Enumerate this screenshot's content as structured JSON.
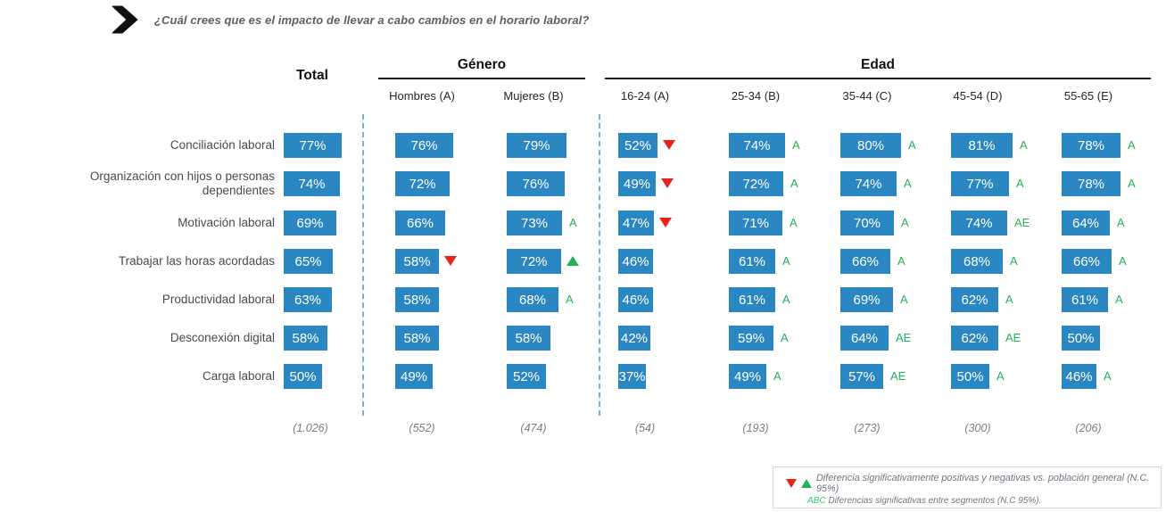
{
  "question": {
    "text": "¿Cuál crees que es el impacto de llevar a cabo cambios en el horario laboral?"
  },
  "chart_data": {
    "type": "table",
    "title": "¿Cuál crees que es el impacto de llevar a cabo cambios en el horario laboral?",
    "unit": "%",
    "column_group_headers": {
      "total": "Total",
      "genero": "Género",
      "edad": "Edad"
    },
    "columns": [
      "Total",
      "Hombres (A)",
      "Mujeres (B)",
      "16-24 (A)",
      "25-34 (B)",
      "35-44 (C)",
      "45-54 (D)",
      "55-65 (E)"
    ],
    "column_groups": {
      "Género": [
        "Hombres (A)",
        "Mujeres (B)"
      ],
      "Edad": [
        "16-24 (A)",
        "25-34 (B)",
        "35-44 (C)",
        "45-54 (D)",
        "55-65 (E)"
      ]
    },
    "row_categories": [
      "Conciliación laboral",
      "Organización con hijos o personas dependientes",
      "Motivación laboral",
      "Trabajar las horas acordadas",
      "Productividad laboral",
      "Desconexión digital",
      "Carga laboral"
    ],
    "values_pct": [
      [
        77,
        76,
        79,
        52,
        74,
        80,
        81,
        78
      ],
      [
        74,
        72,
        76,
        49,
        72,
        74,
        77,
        78
      ],
      [
        69,
        66,
        73,
        47,
        71,
        70,
        74,
        64
      ],
      [
        65,
        58,
        72,
        46,
        61,
        66,
        68,
        66
      ],
      [
        63,
        58,
        68,
        46,
        61,
        69,
        62,
        61
      ],
      [
        58,
        58,
        58,
        42,
        59,
        64,
        62,
        50
      ],
      [
        50,
        49,
        52,
        37,
        49,
        57,
        50,
        46
      ]
    ],
    "significance": [
      [
        "",
        "",
        "",
        "down",
        "A",
        "A",
        "A",
        "A"
      ],
      [
        "",
        "",
        "",
        "down",
        "A",
        "A",
        "A",
        "A"
      ],
      [
        "",
        "",
        "A",
        "down",
        "A",
        "A",
        "AE",
        "A"
      ],
      [
        "",
        "down",
        "up",
        "",
        "A",
        "A",
        "A",
        "A"
      ],
      [
        "",
        "",
        "A",
        "",
        "A",
        "A",
        "A",
        "A"
      ],
      [
        "",
        "",
        "",
        "",
        "A",
        "AE",
        "AE",
        ""
      ],
      [
        "",
        "",
        "",
        "",
        "A",
        "AE",
        "A",
        "A"
      ]
    ],
    "bases": [
      "(1.026)",
      "(552)",
      "(474)",
      "(54)",
      "(193)",
      "(273)",
      "(300)",
      "(206)"
    ]
  },
  "legend": {
    "line1": "Diferencia significativamente  positivas y negativas vs. población general (N.C. 95%)",
    "line2_prefix": "ABC",
    "line2": "Diferencias significativas entre segmentos (N.C 95%)."
  },
  "colors": {
    "bar_blue": "#2b87c1",
    "sig_green": "#25b05c",
    "abc_green": "#2ecc71",
    "sig_red": "#e8231a",
    "divider_blue": "#6fb3e2"
  }
}
